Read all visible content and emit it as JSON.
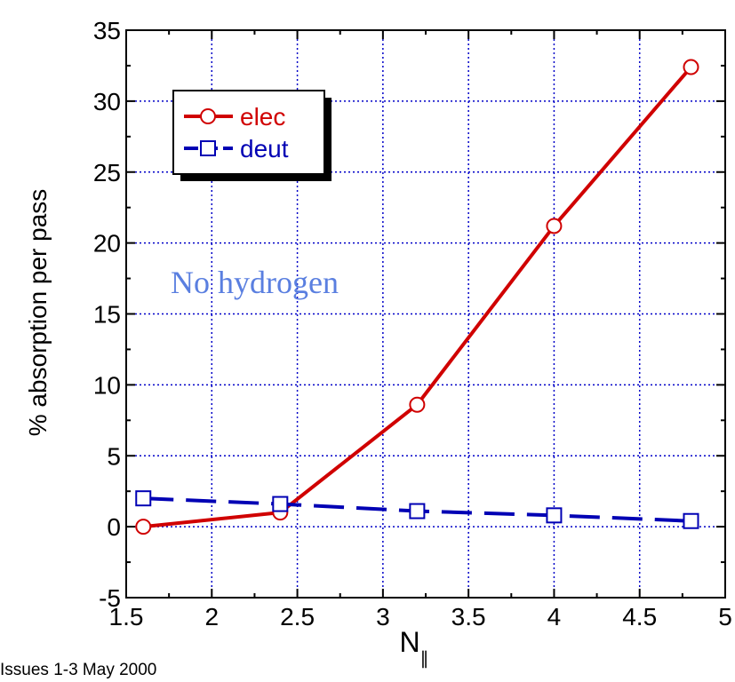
{
  "chart_data": {
    "type": "line",
    "xlabel": "N",
    "xlabel_subscript": "∥",
    "ylabel": "% absorption per pass",
    "xlim": [
      1.5,
      5
    ],
    "ylim": [
      -5,
      35
    ],
    "xticks": [
      "1.5",
      "2",
      "2.5",
      "3",
      "3.5",
      "4",
      "4.5",
      "5"
    ],
    "yticks": [
      "-5",
      "0",
      "5",
      "10",
      "15",
      "20",
      "25",
      "30",
      "35"
    ],
    "grid": true,
    "legend_position": "top-left",
    "x": [
      1.6,
      2.4,
      3.2,
      4.0,
      4.8
    ],
    "series": [
      {
        "name": "elec",
        "values": [
          0.0,
          1.0,
          8.6,
          21.2,
          32.4
        ],
        "color": "#d00000",
        "marker": "circle",
        "linestyle": "solid"
      },
      {
        "name": "deut",
        "values": [
          2.0,
          1.6,
          1.1,
          0.8,
          0.4
        ],
        "color": "#0000b4",
        "marker": "square",
        "linestyle": "dashed"
      }
    ],
    "annotations": [
      {
        "text": "No hydrogen",
        "x": 2.2,
        "y": 16.8,
        "color": "#5a7fe0"
      }
    ]
  },
  "footer": {
    "text": "Issues 1-3 May 2000"
  },
  "colors": {
    "grid": "#0000c8",
    "axes": "#000000"
  }
}
